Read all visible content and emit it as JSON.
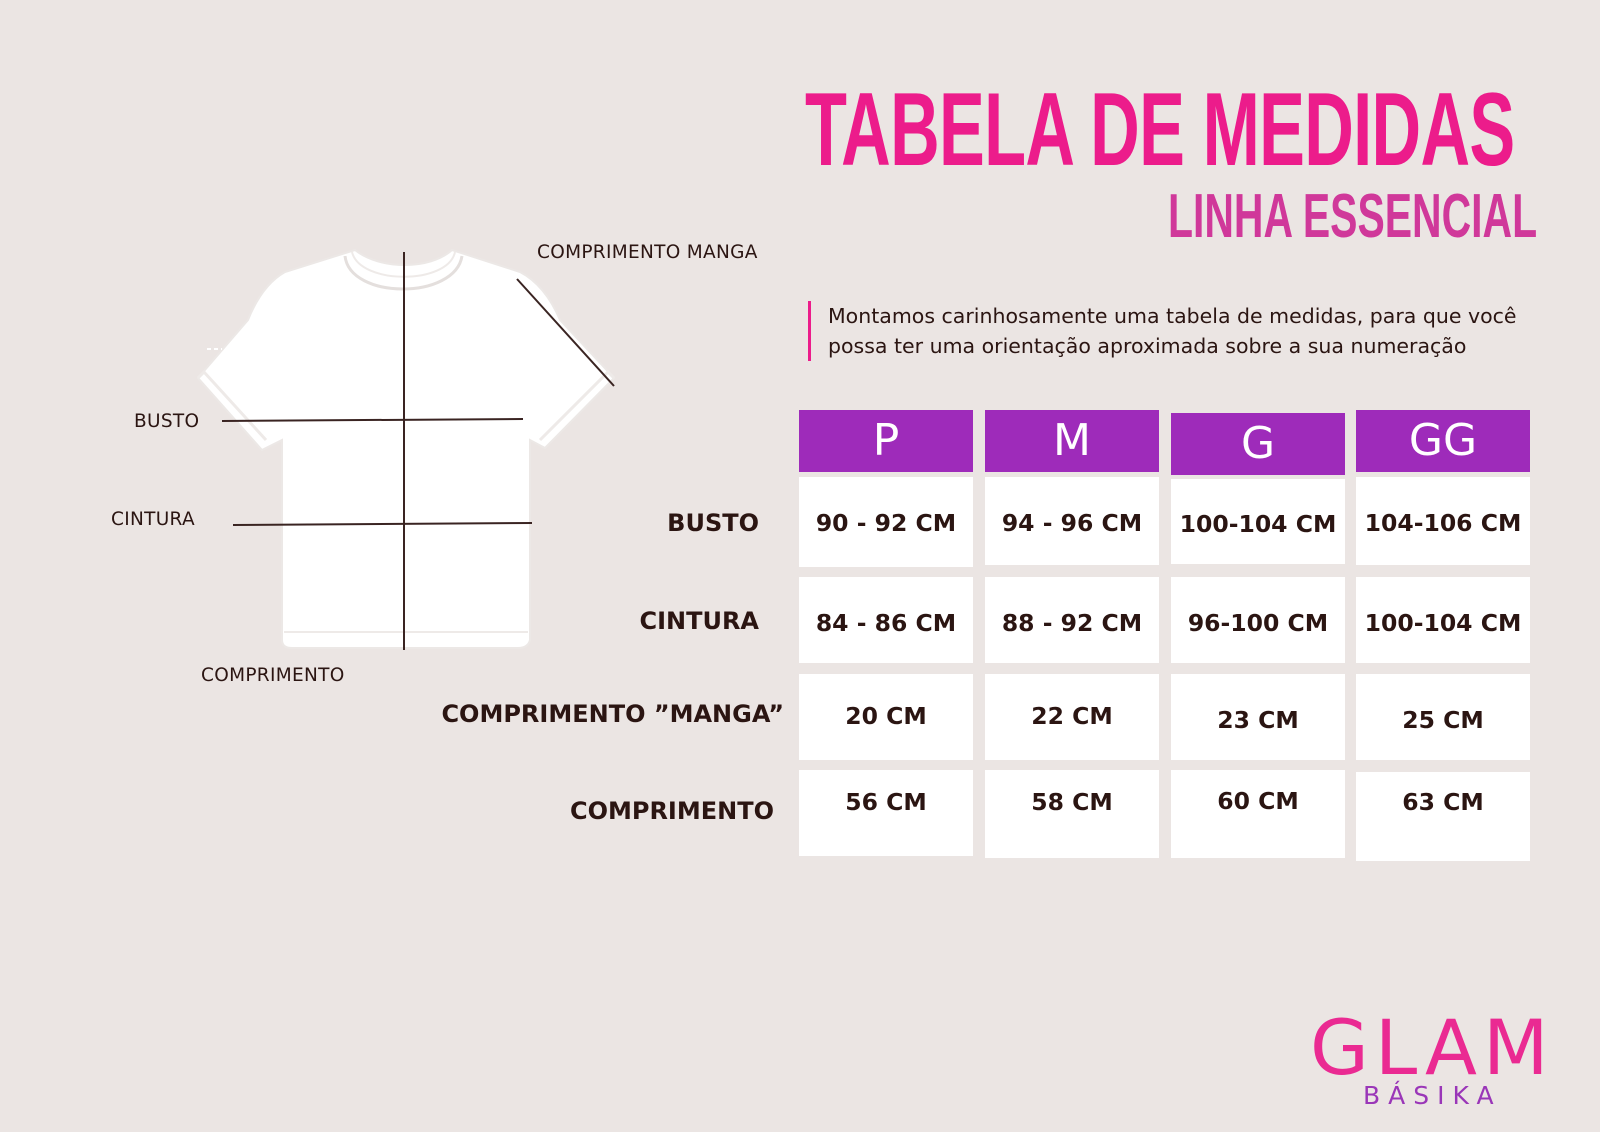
{
  "header": {
    "title": "TABELA DE MEDIDAS",
    "subtitle": "LINHA ESSENCIAL",
    "intro_line1": "Montamos carinhosamente uma tabela de medidas, para que você",
    "intro_line2": "possa ter uma orientação aproximada sobre a sua numeração"
  },
  "diagram": {
    "labels": {
      "sleeve": "COMPRIMENTO MANGA",
      "bust": "BUSTO",
      "waist": "CINTURA",
      "length": "COMPRIMENTO"
    }
  },
  "table": {
    "sizes": [
      "P",
      "M",
      "G",
      "GG"
    ],
    "rows": [
      {
        "label": "BUSTO",
        "values": [
          "90 - 92 CM",
          "94 - 96 CM",
          "100-104  CM",
          "104-106 CM"
        ]
      },
      {
        "label": "CINTURA",
        "values": [
          "84 - 86 CM",
          "88 - 92 CM",
          "96-100 CM",
          "100-104 CM"
        ]
      },
      {
        "label": "COMPRIMENTO  ”MANGA”",
        "values": [
          "20 CM",
          "22 CM",
          "23 CM",
          "25 CM"
        ]
      },
      {
        "label": "COMPRIMENTO",
        "values": [
          "56 CM",
          "58 CM",
          "60  CM",
          "63 CM"
        ]
      }
    ]
  },
  "logo": {
    "brand": "GLAM",
    "tagline": "BÁSIKA"
  },
  "colors": {
    "background": "#ebe5e3",
    "title_pink": "#ec1c8b",
    "header_purple": "#9e2bba",
    "text_dark": "#2b1512"
  }
}
